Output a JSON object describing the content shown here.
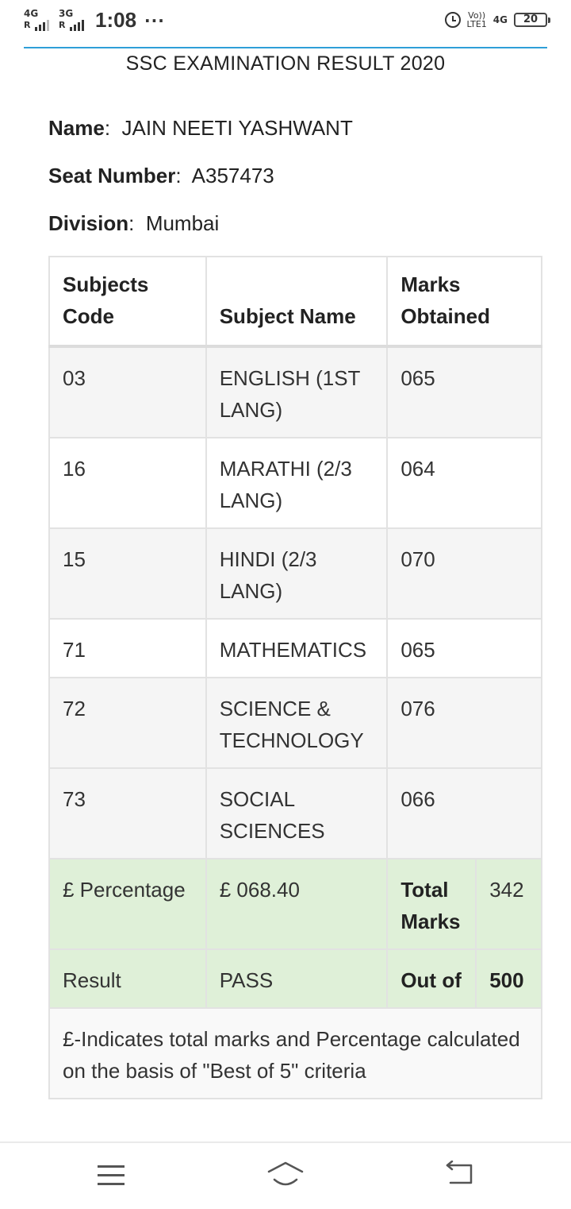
{
  "status_bar": {
    "network1": "4G",
    "network1_sub": "R",
    "network2": "3G",
    "network2_sub": "R",
    "time": "1:08",
    "more": "···",
    "volte_top": "Vo))",
    "volte_bottom": "LTE1",
    "network3": "4G",
    "battery": "20",
    "icons": [
      "alarm-icon",
      "signal-icon",
      "battery-icon"
    ]
  },
  "page": {
    "title": "SSC EXAMINATION RESULT 2020"
  },
  "student": {
    "name_label": "Name",
    "name": "JAIN NEETI YASHWANT",
    "seat_label": "Seat Number",
    "seat": "A357473",
    "division_label": "Division",
    "division": "Mumbai"
  },
  "table": {
    "headers": {
      "code_line1": "Subjects",
      "code_line2": "Code",
      "name": "Subject Name",
      "marks_line1": "Marks",
      "marks_line2": "Obtained"
    },
    "rows": [
      {
        "code": "03",
        "subject": "ENGLISH (1ST LANG)",
        "marks": "065"
      },
      {
        "code": "16",
        "subject": "MARATHI (2/3 LANG)",
        "marks": "064"
      },
      {
        "code": "15",
        "subject": "HINDI (2/3 LANG)",
        "marks": "070"
      },
      {
        "code": "71",
        "subject": "MATHEMATICS",
        "marks": "065"
      },
      {
        "code": "72",
        "subject": "SCIENCE & TECHNOLOGY",
        "marks": "076"
      },
      {
        "code": "73",
        "subject": "SOCIAL SCIENCES",
        "marks": "066"
      }
    ],
    "percentage_label": "£ Percentage",
    "percentage_value": "£ 068.40",
    "total_label": "Total Marks",
    "total_value": "342",
    "result_label": "Result",
    "result_value": "PASS",
    "outof_label": "Out of",
    "outof_value": "500",
    "note": "£-Indicates total marks and Percentage calculated on the basis of \"Best of 5\" criteria"
  },
  "colors": {
    "accent_line": "#2f9fd8",
    "summary_row_bg": "#dff0d8"
  },
  "nav": {
    "icons": [
      "menu-icon",
      "home-icon",
      "back-icon"
    ]
  }
}
